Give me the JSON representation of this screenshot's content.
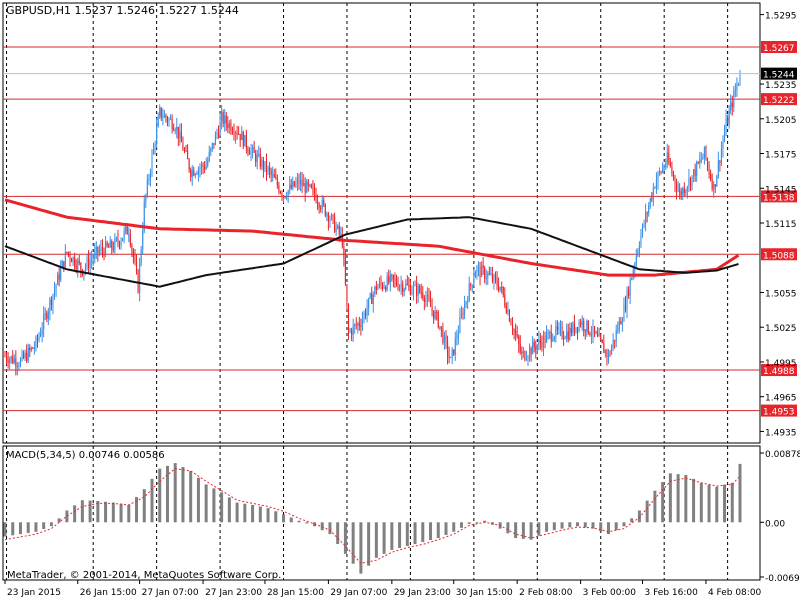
{
  "chart_data": [
    {
      "type": "candlestick",
      "header": "GBPUSD,H1  1.5237 1.5246 1.5227 1.5244",
      "symbol": "GBPUSD",
      "timeframe": "H1",
      "ohlc_label": "1.5237 1.5246 1.5227 1.5244",
      "ylim": [
        1.4925,
        1.5305
      ],
      "y_ticks": [
        "1.5295",
        "1.5235",
        "1.5205",
        "1.5175",
        "1.5145",
        "1.5115",
        "1.5055",
        "1.5025",
        "1.4995",
        "1.4965",
        "1.4935"
      ],
      "current_price": "1.5244",
      "levels": [
        {
          "label": "1.5267",
          "value": 1.5267
        },
        {
          "label": "1.5222",
          "value": 1.5222
        },
        {
          "label": "1.5138",
          "value": 1.5138
        },
        {
          "label": "1.5088",
          "value": 1.5088
        },
        {
          "label": "1.4988",
          "value": 1.4988
        },
        {
          "label": "1.4953",
          "value": 1.4953
        }
      ],
      "anchors": [
        [
          0,
          1.5
        ],
        [
          10,
          1.4995
        ],
        [
          20,
          1.501
        ],
        [
          30,
          1.505
        ],
        [
          40,
          1.509
        ],
        [
          50,
          1.5075
        ],
        [
          60,
          1.509
        ],
        [
          70,
          1.5095
        ],
        [
          80,
          1.511
        ],
        [
          86,
          1.506
        ],
        [
          90,
          1.513
        ],
        [
          96,
          1.518
        ],
        [
          100,
          1.521
        ],
        [
          110,
          1.52
        ],
        [
          120,
          1.516
        ],
        [
          130,
          1.5165
        ],
        [
          140,
          1.5205
        ],
        [
          150,
          1.5195
        ],
        [
          160,
          1.5175
        ],
        [
          170,
          1.516
        ],
        [
          180,
          1.514
        ],
        [
          190,
          1.515
        ],
        [
          200,
          1.514
        ],
        [
          210,
          1.512
        ],
        [
          218,
          1.51
        ],
        [
          222,
          1.502
        ],
        [
          230,
          1.503
        ],
        [
          240,
          1.506
        ],
        [
          250,
          1.5065
        ],
        [
          260,
          1.506
        ],
        [
          270,
          1.5055
        ],
        [
          280,
          1.503
        ],
        [
          288,
          1.4995
        ],
        [
          296,
          1.504
        ],
        [
          304,
          1.5075
        ],
        [
          312,
          1.507
        ],
        [
          320,
          1.506
        ],
        [
          326,
          1.5035
        ],
        [
          334,
          1.5
        ],
        [
          344,
          1.501
        ],
        [
          354,
          1.502
        ],
        [
          364,
          1.502
        ],
        [
          372,
          1.503
        ],
        [
          380,
          1.502
        ],
        [
          390,
          1.5
        ],
        [
          400,
          1.504
        ],
        [
          410,
          1.51
        ],
        [
          420,
          1.515
        ],
        [
          428,
          1.517
        ],
        [
          436,
          1.514
        ],
        [
          444,
          1.5155
        ],
        [
          452,
          1.5175
        ],
        [
          458,
          1.5145
        ],
        [
          466,
          1.52
        ],
        [
          475,
          1.5244
        ]
      ],
      "sma_red": [
        [
          0,
          1.5135
        ],
        [
          40,
          1.512
        ],
        [
          100,
          1.511
        ],
        [
          160,
          1.5108
        ],
        [
          220,
          1.51
        ],
        [
          280,
          1.5095
        ],
        [
          340,
          1.508
        ],
        [
          390,
          1.507
        ],
        [
          420,
          1.507
        ],
        [
          460,
          1.5075
        ],
        [
          475,
          1.5088
        ]
      ],
      "sma_black": [
        [
          0,
          1.5095
        ],
        [
          40,
          1.5075
        ],
        [
          100,
          1.506
        ],
        [
          130,
          1.507
        ],
        [
          180,
          1.508
        ],
        [
          220,
          1.5105
        ],
        [
          260,
          1.5118
        ],
        [
          300,
          1.512
        ],
        [
          340,
          1.511
        ],
        [
          380,
          1.509
        ],
        [
          410,
          1.5075
        ],
        [
          440,
          1.5072
        ],
        [
          460,
          1.5074
        ],
        [
          475,
          1.508
        ]
      ],
      "indicator": {
        "label": "MACD(5,34,5) 0.00746 0.00586",
        "ylim": [
          -0.00693,
          0.00878
        ],
        "y_ticks": [
          "0.00878",
          "0.00",
          "-0.00693"
        ],
        "histogram": [
          [
            0,
            -0.0018
          ],
          [
            20,
            -0.0012
          ],
          [
            30,
            -0.0005
          ],
          [
            40,
            0.0015
          ],
          [
            50,
            0.0028
          ],
          [
            60,
            0.0027
          ],
          [
            70,
            0.0025
          ],
          [
            80,
            0.0022
          ],
          [
            90,
            0.0042
          ],
          [
            100,
            0.0068
          ],
          [
            110,
            0.0075
          ],
          [
            120,
            0.0065
          ],
          [
            130,
            0.0048
          ],
          [
            140,
            0.0038
          ],
          [
            150,
            0.0025
          ],
          [
            160,
            0.0022
          ],
          [
            170,
            0.0018
          ],
          [
            180,
            0.001
          ],
          [
            190,
            0.0002
          ],
          [
            200,
            -0.0005
          ],
          [
            210,
            -0.0015
          ],
          [
            220,
            -0.004
          ],
          [
            230,
            -0.0065
          ],
          [
            240,
            -0.0045
          ],
          [
            250,
            -0.0035
          ],
          [
            260,
            -0.003
          ],
          [
            270,
            -0.0025
          ],
          [
            280,
            -0.002
          ],
          [
            290,
            -0.0012
          ],
          [
            300,
            -0.0002
          ],
          [
            310,
            0.0002
          ],
          [
            320,
            -0.0008
          ],
          [
            330,
            -0.002
          ],
          [
            340,
            -0.0022
          ],
          [
            350,
            -0.0012
          ],
          [
            360,
            -0.0008
          ],
          [
            370,
            -0.0005
          ],
          [
            380,
            -0.0008
          ],
          [
            390,
            -0.0015
          ],
          [
            400,
            -0.0005
          ],
          [
            410,
            0.0015
          ],
          [
            420,
            0.004
          ],
          [
            430,
            0.0062
          ],
          [
            440,
            0.006
          ],
          [
            450,
            0.005
          ],
          [
            460,
            0.0045
          ],
          [
            470,
            0.005
          ],
          [
            475,
            0.0074
          ]
        ],
        "signal": [
          [
            0,
            -0.0022
          ],
          [
            20,
            -0.0015
          ],
          [
            30,
            -0.0008
          ],
          [
            40,
            0.0008
          ],
          [
            50,
            0.002
          ],
          [
            60,
            0.0024
          ],
          [
            70,
            0.0024
          ],
          [
            80,
            0.0022
          ],
          [
            90,
            0.0032
          ],
          [
            100,
            0.0052
          ],
          [
            110,
            0.0068
          ],
          [
            120,
            0.0065
          ],
          [
            130,
            0.0052
          ],
          [
            140,
            0.004
          ],
          [
            150,
            0.0028
          ],
          [
            160,
            0.0024
          ],
          [
            170,
            0.002
          ],
          [
            180,
            0.0014
          ],
          [
            190,
            0.0005
          ],
          [
            200,
            -0.0002
          ],
          [
            210,
            -0.001
          ],
          [
            220,
            -0.003
          ],
          [
            230,
            -0.0052
          ],
          [
            240,
            -0.0048
          ],
          [
            250,
            -0.0038
          ],
          [
            260,
            -0.0032
          ],
          [
            270,
            -0.0028
          ],
          [
            280,
            -0.0022
          ],
          [
            290,
            -0.0015
          ],
          [
            300,
            -0.0004
          ],
          [
            310,
            0.0
          ],
          [
            320,
            -0.0004
          ],
          [
            330,
            -0.0015
          ],
          [
            340,
            -0.002
          ],
          [
            350,
            -0.0015
          ],
          [
            360,
            -0.001
          ],
          [
            370,
            -0.0006
          ],
          [
            380,
            -0.0007
          ],
          [
            390,
            -0.0012
          ],
          [
            400,
            -0.0008
          ],
          [
            410,
            0.0006
          ],
          [
            420,
            0.003
          ],
          [
            430,
            0.0052
          ],
          [
            440,
            0.0056
          ],
          [
            450,
            0.005
          ],
          [
            460,
            0.0046
          ],
          [
            470,
            0.0048
          ],
          [
            475,
            0.0059
          ]
        ]
      },
      "x_tick_labels": [
        {
          "label": "23 Jan 2015",
          "bar": 0
        },
        {
          "label": "26 Jan 15:00",
          "bar": 47
        },
        {
          "label": "27 Jan 07:00",
          "bar": 87
        },
        {
          "label": "27 Jan 23:00",
          "bar": 128
        },
        {
          "label": "28 Jan 15:00",
          "bar": 168
        },
        {
          "label": "29 Jan 07:00",
          "bar": 209
        },
        {
          "label": "29 Jan 23:00",
          "bar": 250
        },
        {
          "label": "30 Jan 15:00",
          "bar": 290
        },
        {
          "label": "2 Feb 08:00",
          "bar": 331
        },
        {
          "label": "3 Feb 00:00",
          "bar": 372
        },
        {
          "label": "3 Feb 16:00",
          "bar": 412
        },
        {
          "label": "4 Feb 08:00",
          "bar": 453
        }
      ],
      "vertical_grid_bars": [
        1,
        57,
        98,
        139,
        180,
        221,
        262,
        303,
        344,
        385,
        426,
        467
      ],
      "copyright": "MetaTrader, © 2001-2014, MetaQuotes Software Corp.",
      "colors": {
        "background": "#ffffff",
        "up_candle": "#3b8ee6",
        "down_candle": "#e8232a",
        "sma_red": "#e8232a",
        "sma_black": "#111111",
        "level_line": "#d42a2a",
        "level_label_bg": "#e8232a",
        "current_price_bg": "#000000",
        "histogram": "#808080",
        "signal": "#e8232a",
        "grid": "#000000",
        "text": "#000000"
      }
    }
  ]
}
